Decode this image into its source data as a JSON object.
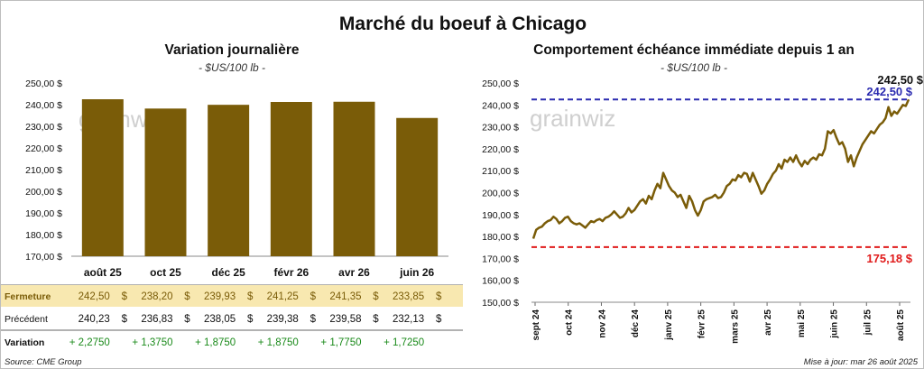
{
  "title": "Marché du boeuf à Chicago",
  "chart_data": [
    {
      "type": "bar",
      "title": "Variation journalière",
      "subtitle": "- $US/100 lb -",
      "watermark": "grainwiz",
      "categories": [
        "août 25",
        "oct 25",
        "déc 25",
        "févr 26",
        "avr 26",
        "juin 26"
      ],
      "series": [
        {
          "name": "Fermeture",
          "values": [
            242.5,
            238.2,
            239.93,
            241.25,
            241.35,
            233.85
          ]
        }
      ],
      "ylim": [
        170,
        250
      ],
      "y_ticks": [
        "170,00 $",
        "180,00 $",
        "190,00 $",
        "200,00 $",
        "210,00 $",
        "220,00 $",
        "230,00 $",
        "240,00 $",
        "250,00 $"
      ],
      "bar_color": "#7a5c08",
      "table": {
        "rows": [
          {
            "label": "Fermeture",
            "values": [
              "242,50",
              "238,20",
              "239,93",
              "241,25",
              "241,35",
              "233,85"
            ],
            "unit": "$",
            "highlight_color": "#f8e8b0",
            "text_color": "#7a5c08"
          },
          {
            "label": "Précédent",
            "values": [
              "240,23",
              "236,83",
              "238,05",
              "239,38",
              "239,58",
              "232,13"
            ],
            "unit": "$",
            "text_color": "#111111"
          },
          {
            "label": "Variation",
            "values": [
              "+ 2,2750",
              "+ 1,3750",
              "+ 1,8750",
              "+ 1,8750",
              "+ 1,7750",
              "+ 1,7250"
            ],
            "unit": "",
            "text_color": "#1a8a1a"
          }
        ]
      }
    },
    {
      "type": "line",
      "title": "Comportement échéance immédiate depuis 1 an",
      "subtitle": "- $US/100 lb -",
      "watermark": "grainwiz",
      "ylim": [
        150,
        250
      ],
      "y_ticks": [
        "150,00 $",
        "160,00 $",
        "170,00 $",
        "180,00 $",
        "190,00 $",
        "200,00 $",
        "210,00 $",
        "220,00 $",
        "230,00 $",
        "240,00 $",
        "250,00 $"
      ],
      "x_ticks": [
        "sept 24",
        "oct 24",
        "nov 24",
        "déc 24",
        "janv 25",
        "févr 25",
        "mars 25",
        "avr 25",
        "mai 25",
        "juin 25",
        "juil 25",
        "août 25"
      ],
      "line_color": "#7a5c08",
      "values": [
        179,
        183,
        184,
        184.5,
        186,
        187,
        187.5,
        189,
        188,
        186,
        187,
        188.5,
        189,
        187,
        186,
        185.5,
        186,
        185,
        184,
        185.5,
        187,
        186.5,
        187.5,
        188,
        187,
        188.5,
        189,
        190,
        191.5,
        190,
        188.5,
        189,
        190.5,
        193,
        191,
        192,
        194,
        196,
        197,
        195,
        198.5,
        197,
        201,
        204,
        202,
        209,
        206,
        203,
        201,
        200,
        198,
        199,
        196,
        193,
        198.5,
        196,
        192,
        189.5,
        192,
        196,
        197,
        197.5,
        198,
        199,
        197.5,
        198,
        200,
        203,
        204,
        206,
        205.5,
        208,
        207,
        209,
        208.5,
        205,
        209,
        206,
        203,
        199.5,
        201,
        204,
        206,
        208.5,
        210,
        213,
        211,
        215,
        214,
        216,
        214,
        217,
        214,
        212,
        214.5,
        213,
        215,
        216,
        215,
        217.5,
        217,
        220,
        228,
        227,
        228.5,
        225,
        222,
        223,
        220,
        214,
        217,
        212,
        216,
        219,
        222,
        224,
        226,
        228,
        227,
        229,
        231,
        232,
        234,
        239,
        235,
        237,
        236,
        238,
        240,
        239.5,
        242.5
      ],
      "hlines": [
        {
          "value": 242.5,
          "label": "242,50 $",
          "color": "#2b2bb0"
        },
        {
          "value": 175.18,
          "label": "175,18 $",
          "color": "#e01b1b"
        }
      ],
      "last_value_label": "242,50 $"
    }
  ],
  "footer": {
    "source": "Source: CME Group",
    "updated": "Mise à jour: mar 26 août 2025"
  }
}
